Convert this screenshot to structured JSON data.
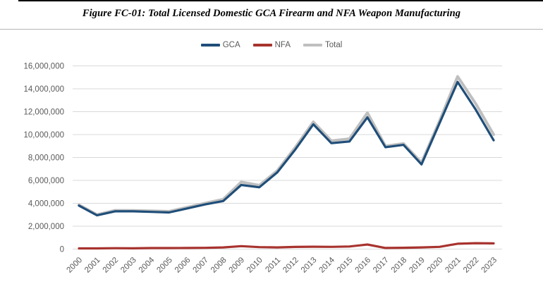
{
  "figure": {
    "title": "Figure FC-01: Total Licensed Domestic GCA Firearm and NFA Weapon Manufacturing"
  },
  "colors": {
    "gca": "#1F4E79",
    "nfa": "#A8332E",
    "total": "#BFBFBF",
    "axis_text": "#595959",
    "gridline": "#D9D9D9"
  },
  "chart_data": {
    "type": "line",
    "title": "Figure FC-01: Total Licensed Domestic GCA Firearm and NFA Weapon Manufacturing",
    "categories": [
      "2000",
      "2001",
      "2002",
      "2003",
      "2004",
      "2005",
      "2006",
      "2007",
      "2008",
      "2009",
      "2010",
      "2011",
      "2012",
      "2013",
      "2014",
      "2015",
      "2016",
      "2017",
      "2018",
      "2019",
      "2020",
      "2021",
      "2022",
      "2023"
    ],
    "series": [
      {
        "name": "GCA",
        "color": "#1F4E79",
        "values": [
          3800000,
          2950000,
          3300000,
          3300000,
          3250000,
          3200000,
          3550000,
          3900000,
          4200000,
          5600000,
          5400000,
          6700000,
          8700000,
          10900000,
          9250000,
          9400000,
          11500000,
          8900000,
          9100000,
          7400000,
          11000000,
          14600000,
          12200000,
          9500000
        ]
      },
      {
        "name": "NFA",
        "color": "#A8332E",
        "values": [
          60000,
          60000,
          80000,
          70000,
          90000,
          90000,
          100000,
          110000,
          150000,
          260000,
          170000,
          150000,
          190000,
          210000,
          200000,
          230000,
          400000,
          100000,
          120000,
          150000,
          200000,
          470000,
          520000,
          500000
        ]
      },
      {
        "name": "Total",
        "color": "#BFBFBF",
        "values": [
          3860000,
          3010000,
          3380000,
          3370000,
          3340000,
          3290000,
          3650000,
          4010000,
          4350000,
          5860000,
          5570000,
          6850000,
          8890000,
          11110000,
          9450000,
          9630000,
          11900000,
          9000000,
          9220000,
          7550000,
          11200000,
          15070000,
          12720000,
          10000000
        ]
      }
    ],
    "xlabel": "",
    "ylabel": "",
    "ylim": [
      0,
      16000000
    ],
    "y_tick_step": 2000000,
    "y_tick_labels": [
      "0",
      "2,000,000",
      "4,000,000",
      "6,000,000",
      "8,000,000",
      "10,000,000",
      "12,000,000",
      "14,000,000",
      "16,000,000"
    ],
    "grid": "horizontal",
    "legend_position": "top-center",
    "legend_order": [
      "GCA",
      "NFA",
      "Total"
    ]
  }
}
